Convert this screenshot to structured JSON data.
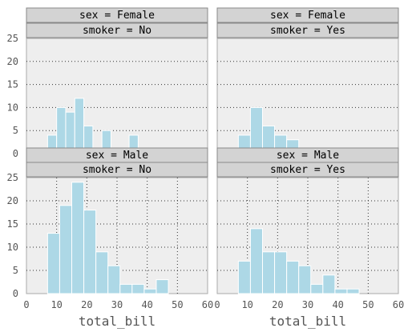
{
  "chart_data": {
    "type": "bar",
    "variant": "histogram-facet-grid",
    "xlabel": "total_bill",
    "x_ticks": [
      "0",
      "10",
      "20",
      "30",
      "40",
      "50",
      "60"
    ],
    "y_ticks": [
      "0",
      "5",
      "10",
      "15",
      "20",
      "25"
    ],
    "xlim": [
      0,
      60
    ],
    "ylim": [
      0,
      25
    ],
    "grid": true,
    "bar_color": "#add8e6",
    "panel_color": "#eeeeee",
    "strip_color": "#d3d3d3",
    "panels": [
      {
        "row_label": "sex = Female",
        "col_label": "smoker = No",
        "bins": [
          {
            "x0": 7,
            "x1": 10,
            "count": 4
          },
          {
            "x0": 10,
            "x1": 13,
            "count": 10
          },
          {
            "x0": 13,
            "x1": 16,
            "count": 9
          },
          {
            "x0": 16,
            "x1": 19,
            "count": 12
          },
          {
            "x0": 19,
            "x1": 22,
            "count": 6
          },
          {
            "x0": 22,
            "x1": 25,
            "count": 1
          },
          {
            "x0": 25,
            "x1": 28,
            "count": 5
          },
          {
            "x0": 28,
            "x1": 31,
            "count": 1
          },
          {
            "x0": 31,
            "x1": 34,
            "count": 1
          },
          {
            "x0": 34,
            "x1": 37,
            "count": 4
          }
        ]
      },
      {
        "row_label": "sex = Female",
        "col_label": "smoker = Yes",
        "bins": [
          {
            "x0": 3,
            "x1": 7,
            "count": 1
          },
          {
            "x0": 7,
            "x1": 11,
            "count": 4
          },
          {
            "x0": 11,
            "x1": 15,
            "count": 10
          },
          {
            "x0": 15,
            "x1": 19,
            "count": 6
          },
          {
            "x0": 19,
            "x1": 23,
            "count": 4
          },
          {
            "x0": 23,
            "x1": 27,
            "count": 3
          },
          {
            "x0": 27,
            "x1": 31,
            "count": 1
          },
          {
            "x0": 31,
            "x1": 35,
            "count": 0
          },
          {
            "x0": 35,
            "x1": 39,
            "count": 0
          },
          {
            "x0": 39,
            "x1": 43,
            "count": 1
          }
        ]
      },
      {
        "row_label": "sex = Male",
        "col_label": "smoker = No",
        "bins": [
          {
            "x0": 7,
            "x1": 11,
            "count": 13
          },
          {
            "x0": 11,
            "x1": 15,
            "count": 19
          },
          {
            "x0": 15,
            "x1": 19,
            "count": 24
          },
          {
            "x0": 19,
            "x1": 23,
            "count": 18
          },
          {
            "x0": 23,
            "x1": 27,
            "count": 9
          },
          {
            "x0": 27,
            "x1": 31,
            "count": 6
          },
          {
            "x0": 31,
            "x1": 35,
            "count": 2
          },
          {
            "x0": 35,
            "x1": 39,
            "count": 2
          },
          {
            "x0": 39,
            "x1": 43,
            "count": 1
          },
          {
            "x0": 43,
            "x1": 47,
            "count": 3
          }
        ]
      },
      {
        "row_label": "sex = Male",
        "col_label": "smoker = Yes",
        "bins": [
          {
            "x0": 7,
            "x1": 11,
            "count": 7
          },
          {
            "x0": 11,
            "x1": 15,
            "count": 14
          },
          {
            "x0": 15,
            "x1": 19,
            "count": 9
          },
          {
            "x0": 19,
            "x1": 23,
            "count": 9
          },
          {
            "x0": 23,
            "x1": 27,
            "count": 7
          },
          {
            "x0": 27,
            "x1": 31,
            "count": 6
          },
          {
            "x0": 31,
            "x1": 35,
            "count": 2
          },
          {
            "x0": 35,
            "x1": 39,
            "count": 4
          },
          {
            "x0": 39,
            "x1": 43,
            "count": 1
          },
          {
            "x0": 43,
            "x1": 47,
            "count": 1
          }
        ]
      }
    ]
  }
}
